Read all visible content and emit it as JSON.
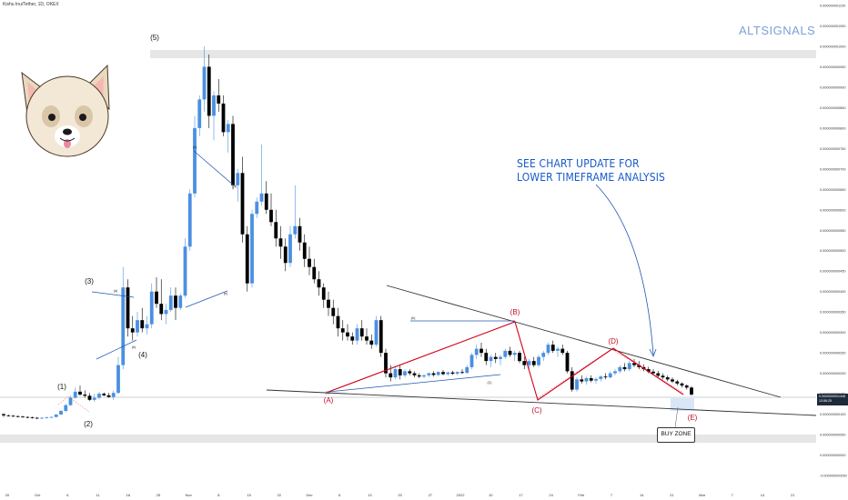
{
  "symbol": "Kishu Inu/Tether, 1D, OKEX",
  "brand": "ALTSIGNALS",
  "annotation": [
    "SEE CHART UPDATE FOR",
    "LOWER TIMEFRAME ANALYSIS"
  ],
  "buy_zone_label": "BUY ZONE",
  "price_tag": [
    "0.0000000001448",
    "13:56:25"
  ],
  "colors": {
    "up_candle": "#4a90e2",
    "down_candle": "#000000",
    "correction_path": "#d0021b",
    "channel_lines": "#1f55b5",
    "trendline": "#333333",
    "zone_band": "#e6e6e6",
    "buy_zone_box": "#cfe0f5"
  },
  "icons": [
    "dog-mascot-icon"
  ],
  "chart_data": {
    "type": "candlestick",
    "title": "Kishu Inu/Tether, 1D, OKEX",
    "y_axis": {
      "position": "right",
      "ticks": [
        "0.000000001100",
        "0.000000001050",
        "0.000000001000",
        "0.000000000950",
        "0.000000000900",
        "0.000000000850",
        "0.000000000800",
        "0.000000000750",
        "0.000000000700",
        "0.000000000650",
        "0.000000000600",
        "0.000000000550",
        "0.000000000500",
        "0.000000000450",
        "0.000000000400",
        "0.000000000350",
        "0.000000000300",
        "0.000000000250",
        "0.000000000200",
        "0.000000000150",
        "0.000000000100",
        "0.000000000050",
        "0.000000000000",
        "-0.000000000050"
      ],
      "ylim": [
        -5e-11,
        1.1e-09
      ]
    },
    "x_axis": {
      "ticks": [
        "20",
        "Oct",
        "6",
        "11",
        "18",
        "25",
        "Nov",
        "8",
        "15",
        "22",
        "Dec",
        "6",
        "13",
        "20",
        "27",
        "2022",
        "10",
        "17",
        "24",
        "Feb",
        "7",
        "14",
        "21",
        "Mar",
        "7",
        "14",
        "21"
      ]
    },
    "wave_labels": [
      "(1)",
      "(2)",
      "(3)",
      "(4)",
      "(5)",
      "(A)",
      "(B)",
      "(C)",
      "(D)",
      "(E)"
    ],
    "sub_wave_labels": [
      "(a)",
      "(b)",
      "(c)",
      "(d)",
      "(e)",
      "(A)",
      "(B)",
      "(C)"
    ],
    "current_price": "0.0000000001448",
    "candles": [
      [
        1e-10,
        1.02e-10,
        9.3e-11,
        9.7e-11
      ],
      [
        9.7e-11,
        9.9e-11,
        9.4e-11,
        9.6e-11
      ],
      [
        9.6e-11,
        9.8e-11,
        9.3e-11,
        9.5e-11
      ],
      [
        9.5e-11,
        9.7e-11,
        9.2e-11,
        9.4e-11
      ],
      [
        9.4e-11,
        9.6e-11,
        9.1e-11,
        9.3e-11
      ],
      [
        9.3e-11,
        9.5e-11,
        9e-11,
        9.2e-11
      ],
      [
        9.2e-11,
        9.4e-11,
        8.9e-11,
        9.1e-11
      ],
      [
        9.1e-11,
        9.3e-11,
        8.8e-11,
        9e-11
      ],
      [
        9e-11,
        9.3e-11,
        8.8e-11,
        9.1e-11
      ],
      [
        9.1e-11,
        9.4e-11,
        8.9e-11,
        9.2e-11
      ],
      [
        9.2e-11,
        9.5e-11,
        9e-11,
        9.3e-11
      ],
      [
        9.3e-11,
        1e-10,
        9.2e-11,
        9.9e-11
      ],
      [
        9.9e-11,
        1.1e-10,
        9.8e-11,
        1.08e-10
      ],
      [
        1.08e-10,
        1.25e-10,
        1.05e-10,
        1.22e-10
      ],
      [
        1.22e-10,
        1.45e-10,
        1.2e-10,
        1.4e-10
      ],
      [
        1.4e-10,
        1.65e-10,
        1.38e-10,
        1.55e-10
      ],
      [
        1.55e-10,
        1.7e-10,
        1.45e-10,
        1.48e-10
      ],
      [
        1.48e-10,
        1.58e-10,
        1.4e-10,
        1.45e-10
      ],
      [
        1.45e-10,
        1.52e-10,
        1.32e-10,
        1.35e-10
      ],
      [
        1.35e-10,
        1.5e-10,
        1.3e-10,
        1.4e-10
      ],
      [
        1.4e-10,
        1.55e-10,
        1.36e-10,
        1.5e-10
      ],
      [
        1.5e-10,
        1.53e-10,
        1.44e-10,
        1.46e-10
      ],
      [
        1.46e-10,
        1.52e-10,
        1.4e-10,
        1.42e-10
      ],
      [
        1.42e-10,
        1.58e-10,
        1.35e-10,
        1.52e-10
      ],
      [
        1.52e-10,
        2.4e-10,
        1.5e-10,
        2.2e-10
      ],
      [
        2.2e-10,
        4.6e-10,
        2.1e-10,
        4.1e-10
      ],
      [
        4.1e-10,
        4.3e-10,
        2.9e-10,
        3.1e-10
      ],
      [
        3.1e-10,
        3.4e-10,
        2.8e-10,
        3e-10
      ],
      [
        3e-10,
        3.5e-10,
        2.9e-10,
        3.3e-10
      ],
      [
        3.3e-10,
        3.6e-10,
        3e-10,
        3.1e-10
      ],
      [
        3.1e-10,
        3.4e-10,
        2.95e-10,
        3.2e-10
      ],
      [
        3.2e-10,
        4.2e-10,
        3.1e-10,
        4e-10
      ],
      [
        4e-10,
        4.35e-10,
        3.6e-10,
        3.7e-10
      ],
      [
        3.7e-10,
        4.3e-10,
        3.3e-10,
        3.45e-10
      ],
      [
        3.45e-10,
        3.7e-10,
        3.2e-10,
        3.55e-10
      ],
      [
        3.55e-10,
        4.1e-10,
        3.5e-10,
        3.9e-10
      ],
      [
        3.9e-10,
        4.1e-10,
        3.3e-10,
        3.6e-10
      ],
      [
        3.6e-10,
        3.95e-10,
        3.55e-10,
        3.9e-10
      ],
      [
        3.9e-10,
        5.3e-10,
        3.85e-10,
        5.1e-10
      ],
      [
        5.1e-10,
        6.5e-10,
        5e-10,
        6.4e-10
      ],
      [
        6.4e-10,
        8.3e-10,
        6.3e-10,
        8e-10
      ],
      [
        8e-10,
        8.8e-10,
        7.8e-10,
        8.7e-10
      ],
      [
        8.7e-10,
        1e-09,
        8.4e-10,
        9.5e-10
      ],
      [
        9.5e-10,
        9.8e-10,
        8e-10,
        8.3e-10
      ],
      [
        8.3e-10,
        8.9e-10,
        7.7e-10,
        8.8e-10
      ],
      [
        8.8e-10,
        9.2e-10,
        8.4e-10,
        8.6e-10
      ],
      [
        8.6e-10,
        8.8e-10,
        7.8e-10,
        7.9e-10
      ],
      [
        7.9e-10,
        8.2e-10,
        7.4e-10,
        8.1e-10
      ],
      [
        8.1e-10,
        8.3e-10,
        6.5e-10,
        6.6e-10
      ],
      [
        6.6e-10,
        7e-10,
        6.2e-10,
        6.9e-10
      ],
      [
        6.9e-10,
        7.3e-10,
        5.2e-10,
        5.4e-10
      ],
      [
        5.4e-10,
        5.6e-10,
        4e-10,
        4.2e-10
      ],
      [
        4.2e-10,
        6e-10,
        4.1e-10,
        5.9e-10
      ],
      [
        5.9e-10,
        6.3e-10,
        5.8e-10,
        6.2e-10
      ],
      [
        6.2e-10,
        7.6e-10,
        6.1e-10,
        6.4e-10
      ],
      [
        6.4e-10,
        6.7e-10,
        5.9e-10,
        6e-10
      ],
      [
        6e-10,
        6.4e-10,
        5.6e-10,
        5.7e-10
      ],
      [
        5.7e-10,
        6e-10,
        5.1e-10,
        5.3e-10
      ],
      [
        5.3e-10,
        5.6e-10,
        4.8e-10,
        5.1e-10
      ],
      [
        5.1e-10,
        5.3e-10,
        4.5e-10,
        4.7e-10
      ],
      [
        4.7e-10,
        5.6e-10,
        4.6e-10,
        5.4e-10
      ],
      [
        5.4e-10,
        6.6e-10,
        5.3e-10,
        5.6e-10
      ],
      [
        5.6e-10,
        5.8e-10,
        5e-10,
        5.2e-10
      ],
      [
        5.2e-10,
        5.4e-10,
        4.6e-10,
        4.8e-10
      ],
      [
        4.8e-10,
        5.1e-10,
        4.4e-10,
        4.6e-10
      ],
      [
        4.6e-10,
        4.8e-10,
        4.2e-10,
        4.3e-10
      ],
      [
        4.3e-10,
        4.5e-10,
        3.9e-10,
        4.1e-10
      ],
      [
        4.1e-10,
        4.2e-10,
        3.6e-10,
        3.8e-10
      ],
      [
        3.8e-10,
        4e-10,
        3.4e-10,
        3.6e-10
      ],
      [
        3.6e-10,
        3.8e-10,
        3.2e-10,
        3.4e-10
      ],
      [
        3.4e-10,
        3.6e-10,
        2.9e-10,
        3.1e-10
      ],
      [
        3.1e-10,
        3.3e-10,
        2.8e-10,
        3e-10
      ],
      [
        3e-10,
        3.2e-10,
        2.8e-10,
        2.9e-10
      ],
      [
        2.9e-10,
        3e-10,
        2.7e-10,
        2.8e-10
      ],
      [
        2.8e-10,
        3.2e-10,
        2.7e-10,
        3.1e-10
      ],
      [
        3.1e-10,
        3.3e-10,
        2.8e-10,
        2.9e-10
      ],
      [
        2.9e-10,
        3.1e-10,
        2.7e-10,
        2.8e-10
      ],
      [
        2.8e-10,
        2.95e-10,
        2.6e-10,
        2.7e-10
      ],
      [
        2.7e-10,
        3.4e-10,
        2.65e-10,
        3.3e-10
      ],
      [
        3.3e-10,
        3.4e-10,
        2.4e-10,
        2.5e-10
      ],
      [
        2.5e-10,
        2.6e-10,
        1.9e-10,
        2e-10
      ],
      [
        2e-10,
        2.2e-10,
        1.8e-10,
        1.9e-10
      ],
      [
        1.9e-10,
        2.15e-10,
        1.85e-10,
        2.1e-10
      ],
      [
        2.1e-10,
        2.2e-10,
        1.85e-10,
        1.95e-10
      ],
      [
        1.95e-10,
        2.1e-10,
        1.9e-10,
        2.05e-10
      ],
      [
        2.05e-10,
        2.1e-10,
        1.95e-10,
        2e-10
      ],
      [
        2e-10,
        2.05e-10,
        1.9e-10,
        1.95e-10
      ],
      [
        1.95e-10,
        2e-10,
        1.88e-10,
        1.92e-10
      ],
      [
        1.92e-10,
        1.98e-10,
        1.88e-10,
        1.95e-10
      ],
      [
        1.95e-10,
        2.02e-10,
        1.9e-10,
        2e-10
      ],
      [
        2e-10,
        2.05e-10,
        1.92e-10,
        1.96e-10
      ],
      [
        1.96e-10,
        2.05e-10,
        1.93e-10,
        2.03e-10
      ],
      [
        2.03e-10,
        2.08e-10,
        1.95e-10,
        1.98e-10
      ],
      [
        1.98e-10,
        2.04e-10,
        1.94e-10,
        2.02e-10
      ],
      [
        2.02e-10,
        2.06e-10,
        1.96e-10,
        1.99e-10
      ],
      [
        1.99e-10,
        2.05e-10,
        1.95e-10,
        2.03e-10
      ],
      [
        2.03e-10,
        2.1e-10,
        1.98e-10,
        2.01e-10
      ],
      [
        2.01e-10,
        2.2e-10,
        1.98e-10,
        2.15e-10
      ],
      [
        2.15e-10,
        2.5e-10,
        2.1e-10,
        2.45e-10
      ],
      [
        2.45e-10,
        2.7e-10,
        2.35e-10,
        2.6e-10
      ],
      [
        2.6e-10,
        2.75e-10,
        2.4e-10,
        2.5e-10
      ],
      [
        2.5e-10,
        2.6e-10,
        2.2e-10,
        2.3e-10
      ],
      [
        2.3e-10,
        2.45e-10,
        2.15e-10,
        2.4e-10
      ],
      [
        2.4e-10,
        2.5e-10,
        2.25e-10,
        2.35e-10
      ],
      [
        2.35e-10,
        2.45e-10,
        2.2e-10,
        2.4e-10
      ],
      [
        2.4e-10,
        2.6e-10,
        2.35e-10,
        2.55e-10
      ],
      [
        2.55e-10,
        2.65e-10,
        2.4e-10,
        2.45e-10
      ],
      [
        2.45e-10,
        2.55e-10,
        2.3e-10,
        2.5e-10
      ],
      [
        2.5e-10,
        2.55e-10,
        2.25e-10,
        2.3e-10
      ],
      [
        2.3e-10,
        2.4e-10,
        2.1e-10,
        2.2e-10
      ],
      [
        2.2e-10,
        2.35e-10,
        2.1e-10,
        2.3e-10
      ],
      [
        2.3e-10,
        2.4e-10,
        2.15e-10,
        2.2e-10
      ],
      [
        2.2e-10,
        2.45e-10,
        2.15e-10,
        2.4e-10
      ],
      [
        2.4e-10,
        2.55e-10,
        2.3e-10,
        2.5e-10
      ],
      [
        2.5e-10,
        2.75e-10,
        2.45e-10,
        2.7e-10
      ],
      [
        2.7e-10,
        2.8e-10,
        2.5e-10,
        2.55e-10
      ],
      [
        2.55e-10,
        2.65e-10,
        2.4e-10,
        2.6e-10
      ],
      [
        2.6e-10,
        2.7e-10,
        2.45e-10,
        2.5e-10
      ],
      [
        2.5e-10,
        2.55e-10,
        2e-10,
        2.05e-10
      ],
      [
        2.05e-10,
        2.15e-10,
        1.55e-10,
        1.6e-10
      ],
      [
        1.6e-10,
        1.9e-10,
        1.55e-10,
        1.85e-10
      ],
      [
        1.85e-10,
        1.95e-10,
        1.75e-10,
        1.8e-10
      ],
      [
        1.8e-10,
        1.92e-10,
        1.72e-10,
        1.88e-10
      ],
      [
        1.88e-10,
        1.95e-10,
        1.78e-10,
        1.82e-10
      ],
      [
        1.82e-10,
        1.9e-10,
        1.74e-10,
        1.86e-10
      ],
      [
        1.86e-10,
        1.95e-10,
        1.8e-10,
        1.92e-10
      ],
      [
        1.92e-10,
        2e-10,
        1.85e-10,
        1.9e-10
      ],
      [
        1.9e-10,
        2.05e-10,
        1.87e-10,
        2e-10
      ],
      [
        2e-10,
        2.1e-10,
        1.95e-10,
        2.05e-10
      ],
      [
        2.05e-10,
        2.2e-10,
        2e-10,
        2.15e-10
      ],
      [
        2.15e-10,
        2.25e-10,
        2.05e-10,
        2.1e-10
      ],
      [
        2.1e-10,
        2.3e-10,
        2.05e-10,
        2.25e-10
      ],
      [
        2.25e-10,
        2.35e-10,
        2.15e-10,
        2.2e-10
      ],
      [
        2.2e-10,
        2.3e-10,
        2.1e-10,
        2.15e-10
      ],
      [
        2.15e-10,
        2.22e-10,
        2.05e-10,
        2.1e-10
      ],
      [
        2.1e-10,
        2.16e-10,
        2e-10,
        2.04e-10
      ],
      [
        2.04e-10,
        2.1e-10,
        1.95e-10,
        2e-10
      ],
      [
        2e-10,
        2.06e-10,
        1.9e-10,
        1.94e-10
      ],
      [
        1.94e-10,
        2e-10,
        1.85e-10,
        1.9e-10
      ],
      [
        1.9e-10,
        1.95e-10,
        1.8e-10,
        1.85e-10
      ],
      [
        1.85e-10,
        1.9e-10,
        1.76e-10,
        1.8e-10
      ],
      [
        1.8e-10,
        1.84e-10,
        1.7e-10,
        1.75e-10
      ],
      [
        1.75e-10,
        1.78e-10,
        1.65e-10,
        1.7e-10
      ],
      [
        1.7e-10,
        1.73e-10,
        1.6e-10,
        1.65e-10
      ],
      [
        1.65e-10,
        1.68e-10,
        1.45e-10,
        1.48e-10
      ]
    ]
  }
}
